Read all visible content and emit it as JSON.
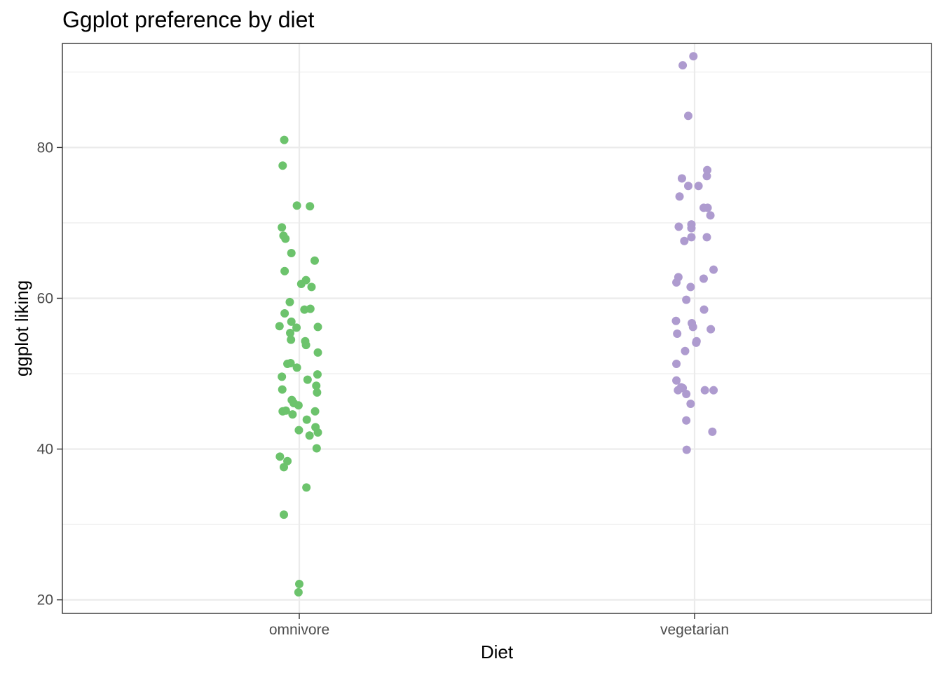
{
  "chart_data": {
    "type": "scatter",
    "title": "Ggplot preference by diet",
    "xlabel": "Diet",
    "ylabel": "ggplot liking",
    "categories": [
      "omnivore",
      "vegetarian"
    ],
    "ylim": [
      18.2,
      93.8
    ],
    "yticks": [
      20,
      40,
      60,
      80
    ],
    "y_minor_ticks": [
      30,
      50,
      70,
      90
    ],
    "grid": true,
    "legend": "none",
    "series": [
      {
        "category": "omnivore",
        "color": "#6cc36c",
        "points": [
          {
            "x": -0.038,
            "y": 81.0
          },
          {
            "x": -0.042,
            "y": 77.6
          },
          {
            "x": -0.006,
            "y": 72.3
          },
          {
            "x": 0.027,
            "y": 72.2
          },
          {
            "x": -0.044,
            "y": 69.4
          },
          {
            "x": -0.04,
            "y": 68.3
          },
          {
            "x": -0.035,
            "y": 67.9
          },
          {
            "x": -0.02,
            "y": 66.0
          },
          {
            "x": 0.039,
            "y": 65.0
          },
          {
            "x": -0.037,
            "y": 63.6
          },
          {
            "x": 0.017,
            "y": 62.4
          },
          {
            "x": 0.005,
            "y": 61.9
          },
          {
            "x": 0.031,
            "y": 61.5
          },
          {
            "x": -0.024,
            "y": 59.5
          },
          {
            "x": 0.013,
            "y": 58.5
          },
          {
            "x": 0.028,
            "y": 58.6
          },
          {
            "x": -0.037,
            "y": 58.0
          },
          {
            "x": -0.02,
            "y": 56.9
          },
          {
            "x": -0.05,
            "y": 56.3
          },
          {
            "x": -0.007,
            "y": 56.1
          },
          {
            "x": 0.047,
            "y": 56.2
          },
          {
            "x": -0.023,
            "y": 55.4
          },
          {
            "x": -0.021,
            "y": 54.5
          },
          {
            "x": 0.015,
            "y": 54.3
          },
          {
            "x": 0.017,
            "y": 53.8
          },
          {
            "x": 0.047,
            "y": 52.8
          },
          {
            "x": -0.03,
            "y": 51.3
          },
          {
            "x": -0.022,
            "y": 51.4
          },
          {
            "x": -0.006,
            "y": 50.8
          },
          {
            "x": 0.046,
            "y": 49.9
          },
          {
            "x": -0.044,
            "y": 49.6
          },
          {
            "x": 0.021,
            "y": 49.2
          },
          {
            "x": 0.043,
            "y": 48.4
          },
          {
            "x": -0.043,
            "y": 47.9
          },
          {
            "x": 0.045,
            "y": 47.5
          },
          {
            "x": -0.019,
            "y": 46.5
          },
          {
            "x": -0.014,
            "y": 46.1
          },
          {
            "x": -0.002,
            "y": 45.8
          },
          {
            "x": -0.042,
            "y": 45.0
          },
          {
            "x": -0.034,
            "y": 45.1
          },
          {
            "x": 0.04,
            "y": 45.0
          },
          {
            "x": -0.017,
            "y": 44.6
          },
          {
            "x": 0.019,
            "y": 43.9
          },
          {
            "x": 0.041,
            "y": 42.9
          },
          {
            "x": -0.001,
            "y": 42.5
          },
          {
            "x": 0.047,
            "y": 42.2
          },
          {
            "x": 0.026,
            "y": 41.8
          },
          {
            "x": 0.044,
            "y": 40.1
          },
          {
            "x": -0.049,
            "y": 39.0
          },
          {
            "x": -0.03,
            "y": 38.4
          },
          {
            "x": -0.039,
            "y": 37.6
          },
          {
            "x": 0.018,
            "y": 34.9
          },
          {
            "x": -0.039,
            "y": 31.3
          },
          {
            "x": 0.0,
            "y": 22.1
          },
          {
            "x": -0.002,
            "y": 21.0
          }
        ]
      },
      {
        "category": "vegetarian",
        "color": "#ae9bcf",
        "points": [
          {
            "x": -0.003,
            "y": 92.1
          },
          {
            "x": -0.03,
            "y": 90.9
          },
          {
            "x": -0.016,
            "y": 84.2
          },
          {
            "x": 0.032,
            "y": 77.0
          },
          {
            "x": 0.031,
            "y": 76.2
          },
          {
            "x": -0.032,
            "y": 75.9
          },
          {
            "x": -0.016,
            "y": 74.9
          },
          {
            "x": 0.01,
            "y": 74.9
          },
          {
            "x": -0.038,
            "y": 73.5
          },
          {
            "x": 0.023,
            "y": 72.0
          },
          {
            "x": 0.033,
            "y": 72.0
          },
          {
            "x": 0.04,
            "y": 71.0
          },
          {
            "x": -0.04,
            "y": 69.5
          },
          {
            "x": -0.008,
            "y": 69.8
          },
          {
            "x": -0.008,
            "y": 69.3
          },
          {
            "x": -0.008,
            "y": 68.1
          },
          {
            "x": 0.031,
            "y": 68.1
          },
          {
            "x": -0.026,
            "y": 67.6
          },
          {
            "x": 0.048,
            "y": 63.8
          },
          {
            "x": -0.041,
            "y": 62.8
          },
          {
            "x": 0.023,
            "y": 62.6
          },
          {
            "x": -0.046,
            "y": 62.1
          },
          {
            "x": -0.01,
            "y": 61.5
          },
          {
            "x": -0.021,
            "y": 59.8
          },
          {
            "x": 0.024,
            "y": 58.5
          },
          {
            "x": -0.047,
            "y": 57.0
          },
          {
            "x": -0.007,
            "y": 56.7
          },
          {
            "x": -0.004,
            "y": 56.2
          },
          {
            "x": 0.041,
            "y": 55.9
          },
          {
            "x": -0.044,
            "y": 55.3
          },
          {
            "x": 0.005,
            "y": 54.3
          },
          {
            "x": 0.004,
            "y": 54.1
          },
          {
            "x": -0.024,
            "y": 53.0
          },
          {
            "x": -0.046,
            "y": 51.3
          },
          {
            "x": -0.046,
            "y": 49.1
          },
          {
            "x": -0.034,
            "y": 48.2
          },
          {
            "x": -0.03,
            "y": 48.1
          },
          {
            "x": -0.042,
            "y": 47.8
          },
          {
            "x": 0.026,
            "y": 47.8
          },
          {
            "x": 0.048,
            "y": 47.8
          },
          {
            "x": -0.021,
            "y": 47.3
          },
          {
            "x": -0.01,
            "y": 46.0
          },
          {
            "x": -0.021,
            "y": 43.8
          },
          {
            "x": 0.045,
            "y": 42.3
          },
          {
            "x": -0.02,
            "y": 39.9
          }
        ]
      }
    ]
  }
}
